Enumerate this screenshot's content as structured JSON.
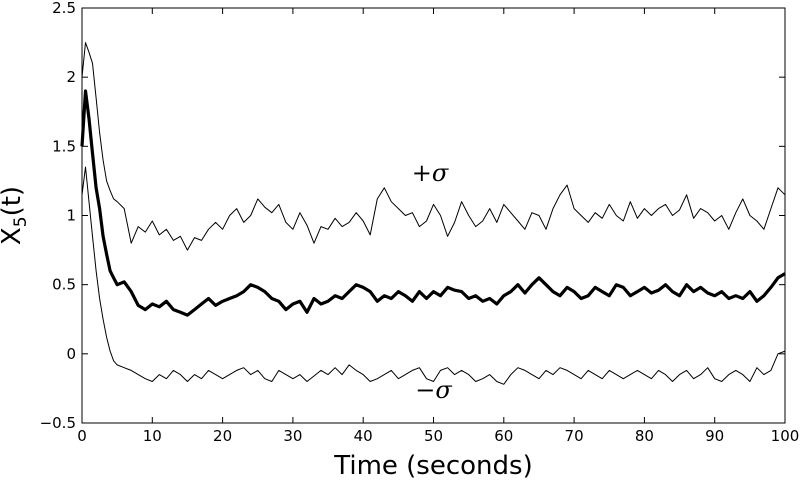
{
  "chart_data": {
    "type": "line",
    "title": "",
    "xlabel": "Time (seconds)",
    "ylabel_main": "X",
    "ylabel_sub": "5",
    "ylabel_tail": "(t)",
    "xlim": [
      0,
      100
    ],
    "ylim": [
      -0.5,
      2.5
    ],
    "xticks": [
      0,
      10,
      20,
      30,
      40,
      50,
      60,
      70,
      80,
      90,
      100
    ],
    "yticks": [
      -0.5,
      0,
      0.5,
      1,
      1.5,
      2,
      2.5
    ],
    "ytick_labels": [
      "−0.5",
      "0",
      "0.5",
      "1",
      "1.5",
      "2",
      "2.5"
    ],
    "grid": false,
    "legend": "none",
    "annotations": [
      {
        "text": "+σ",
        "x": 49.5,
        "y": 1.25
      },
      {
        "text": "−σ",
        "x": 50,
        "y": -0.32
      }
    ],
    "series": [
      {
        "role": "upper",
        "x": [
          0,
          0.5,
          1,
          1.5,
          2,
          2.5,
          3,
          3.5,
          4,
          4.5,
          5,
          6,
          7,
          8,
          9,
          10,
          11,
          12,
          13,
          14,
          15,
          16,
          17,
          18,
          19,
          20,
          21,
          22,
          23,
          24,
          25,
          26,
          27,
          28,
          29,
          30,
          31,
          32,
          33,
          34,
          35,
          36,
          37,
          38,
          39,
          40,
          41,
          42,
          43,
          44,
          45,
          46,
          47,
          48,
          49,
          50,
          51,
          52,
          53,
          54,
          55,
          56,
          57,
          58,
          59,
          60,
          61,
          62,
          63,
          64,
          65,
          66,
          67,
          68,
          69,
          70,
          71,
          72,
          73,
          74,
          75,
          76,
          77,
          78,
          79,
          80,
          81,
          82,
          83,
          84,
          85,
          86,
          87,
          88,
          89,
          90,
          91,
          92,
          93,
          94,
          95,
          96,
          97,
          98,
          99,
          100
        ],
        "y": [
          2.0,
          2.25,
          2.18,
          2.1,
          1.85,
          1.6,
          1.4,
          1.25,
          1.18,
          1.12,
          1.1,
          1.05,
          0.8,
          0.92,
          0.88,
          0.96,
          0.86,
          0.9,
          0.82,
          0.85,
          0.75,
          0.84,
          0.82,
          0.9,
          0.95,
          0.9,
          1.0,
          1.05,
          0.95,
          1.0,
          1.12,
          1.06,
          1.02,
          1.08,
          0.95,
          0.9,
          1.02,
          0.93,
          0.8,
          0.92,
          0.9,
          0.98,
          0.92,
          0.95,
          1.02,
          0.96,
          0.86,
          1.12,
          1.2,
          1.1,
          1.05,
          1.0,
          1.02,
          0.92,
          0.96,
          1.08,
          1.0,
          0.85,
          0.95,
          1.1,
          1.0,
          0.92,
          0.96,
          1.05,
          0.95,
          1.08,
          1.02,
          0.96,
          0.9,
          1.02,
          1.0,
          0.9,
          1.05,
          1.15,
          1.22,
          1.05,
          1.0,
          0.95,
          1.02,
          0.98,
          1.08,
          1.0,
          0.96,
          1.1,
          0.98,
          1.05,
          1.0,
          1.05,
          1.08,
          1.0,
          1.04,
          1.15,
          0.98,
          1.05,
          1.02,
          0.96,
          1.0,
          0.9,
          1.02,
          1.12,
          1.0,
          0.96,
          0.9,
          1.05,
          1.2,
          1.15
        ]
      },
      {
        "role": "mean",
        "x": [
          0,
          0.5,
          1,
          1.5,
          2,
          2.5,
          3,
          3.5,
          4,
          4.5,
          5,
          6,
          7,
          8,
          9,
          10,
          11,
          12,
          13,
          14,
          15,
          16,
          17,
          18,
          19,
          20,
          21,
          22,
          23,
          24,
          25,
          26,
          27,
          28,
          29,
          30,
          31,
          32,
          33,
          34,
          35,
          36,
          37,
          38,
          39,
          40,
          41,
          42,
          43,
          44,
          45,
          46,
          47,
          48,
          49,
          50,
          51,
          52,
          53,
          54,
          55,
          56,
          57,
          58,
          59,
          60,
          61,
          62,
          63,
          64,
          65,
          66,
          67,
          68,
          69,
          70,
          71,
          72,
          73,
          74,
          75,
          76,
          77,
          78,
          79,
          80,
          81,
          82,
          83,
          84,
          85,
          86,
          87,
          88,
          89,
          90,
          91,
          92,
          93,
          94,
          95,
          96,
          97,
          98,
          99,
          100
        ],
        "y": [
          1.5,
          1.9,
          1.7,
          1.45,
          1.2,
          1.05,
          0.85,
          0.72,
          0.6,
          0.55,
          0.5,
          0.52,
          0.45,
          0.35,
          0.32,
          0.36,
          0.34,
          0.38,
          0.32,
          0.3,
          0.28,
          0.32,
          0.36,
          0.4,
          0.35,
          0.38,
          0.4,
          0.42,
          0.45,
          0.5,
          0.48,
          0.45,
          0.4,
          0.38,
          0.32,
          0.36,
          0.38,
          0.3,
          0.4,
          0.36,
          0.38,
          0.42,
          0.4,
          0.45,
          0.5,
          0.48,
          0.45,
          0.38,
          0.42,
          0.4,
          0.45,
          0.42,
          0.38,
          0.45,
          0.4,
          0.45,
          0.42,
          0.48,
          0.46,
          0.45,
          0.4,
          0.42,
          0.38,
          0.4,
          0.36,
          0.42,
          0.45,
          0.5,
          0.44,
          0.5,
          0.55,
          0.5,
          0.45,
          0.42,
          0.48,
          0.45,
          0.4,
          0.42,
          0.48,
          0.45,
          0.42,
          0.5,
          0.48,
          0.42,
          0.45,
          0.48,
          0.44,
          0.46,
          0.5,
          0.45,
          0.42,
          0.5,
          0.45,
          0.48,
          0.44,
          0.42,
          0.45,
          0.4,
          0.42,
          0.4,
          0.45,
          0.38,
          0.42,
          0.48,
          0.55,
          0.58
        ]
      },
      {
        "role": "lower",
        "x": [
          0,
          0.5,
          1,
          1.5,
          2,
          2.5,
          3,
          3.5,
          4,
          4.5,
          5,
          6,
          7,
          8,
          9,
          10,
          11,
          12,
          13,
          14,
          15,
          16,
          17,
          18,
          19,
          20,
          21,
          22,
          23,
          24,
          25,
          26,
          27,
          28,
          29,
          30,
          31,
          32,
          33,
          34,
          35,
          36,
          37,
          38,
          39,
          40,
          41,
          42,
          43,
          44,
          45,
          46,
          47,
          48,
          49,
          50,
          51,
          52,
          53,
          54,
          55,
          56,
          57,
          58,
          59,
          60,
          61,
          62,
          63,
          64,
          65,
          66,
          67,
          68,
          69,
          70,
          71,
          72,
          73,
          74,
          75,
          76,
          77,
          78,
          79,
          80,
          81,
          82,
          83,
          84,
          85,
          86,
          87,
          88,
          89,
          90,
          91,
          92,
          93,
          94,
          95,
          96,
          97,
          98,
          99,
          100
        ],
        "y": [
          1.15,
          1.35,
          1.1,
          0.85,
          0.6,
          0.4,
          0.25,
          0.12,
          0.02,
          -0.05,
          -0.08,
          -0.1,
          -0.12,
          -0.15,
          -0.18,
          -0.2,
          -0.15,
          -0.18,
          -0.12,
          -0.15,
          -0.2,
          -0.15,
          -0.18,
          -0.12,
          -0.15,
          -0.18,
          -0.15,
          -0.12,
          -0.1,
          -0.15,
          -0.12,
          -0.18,
          -0.2,
          -0.12,
          -0.15,
          -0.18,
          -0.15,
          -0.2,
          -0.16,
          -0.12,
          -0.15,
          -0.1,
          -0.15,
          -0.08,
          -0.12,
          -0.15,
          -0.2,
          -0.18,
          -0.15,
          -0.12,
          -0.18,
          -0.15,
          -0.12,
          -0.1,
          -0.18,
          -0.2,
          -0.12,
          -0.1,
          -0.15,
          -0.12,
          -0.15,
          -0.2,
          -0.18,
          -0.15,
          -0.2,
          -0.22,
          -0.15,
          -0.1,
          -0.12,
          -0.15,
          -0.18,
          -0.12,
          -0.15,
          -0.1,
          -0.12,
          -0.15,
          -0.18,
          -0.12,
          -0.15,
          -0.18,
          -0.12,
          -0.15,
          -0.18,
          -0.15,
          -0.12,
          -0.15,
          -0.18,
          -0.12,
          -0.15,
          -0.2,
          -0.15,
          -0.12,
          -0.18,
          -0.15,
          -0.1,
          -0.18,
          -0.2,
          -0.15,
          -0.12,
          -0.15,
          -0.2,
          -0.1,
          -0.15,
          -0.12,
          0.0,
          0.02
        ]
      }
    ]
  }
}
